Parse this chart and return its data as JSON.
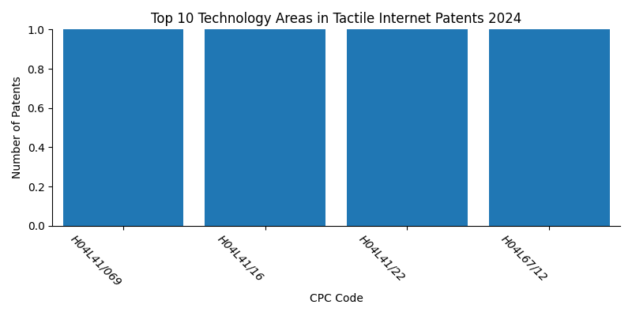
{
  "title": "Top 10 Technology Areas in Tactile Internet Patents 2024",
  "xlabel": "CPC Code",
  "ylabel": "Number of Patents",
  "categories": [
    "H04L41/069",
    "H04L41/16",
    "H04L41/22",
    "H04L67/12"
  ],
  "values": [
    1,
    1,
    1,
    1
  ],
  "bar_color": "#2077b4",
  "bar_width": 0.85,
  "ylim": [
    0,
    1.0
  ],
  "yticks": [
    0.0,
    0.2,
    0.4,
    0.6,
    0.8,
    1.0
  ],
  "tick_rotation": -45,
  "figsize": [
    8.0,
    4.0
  ],
  "dpi": 100
}
